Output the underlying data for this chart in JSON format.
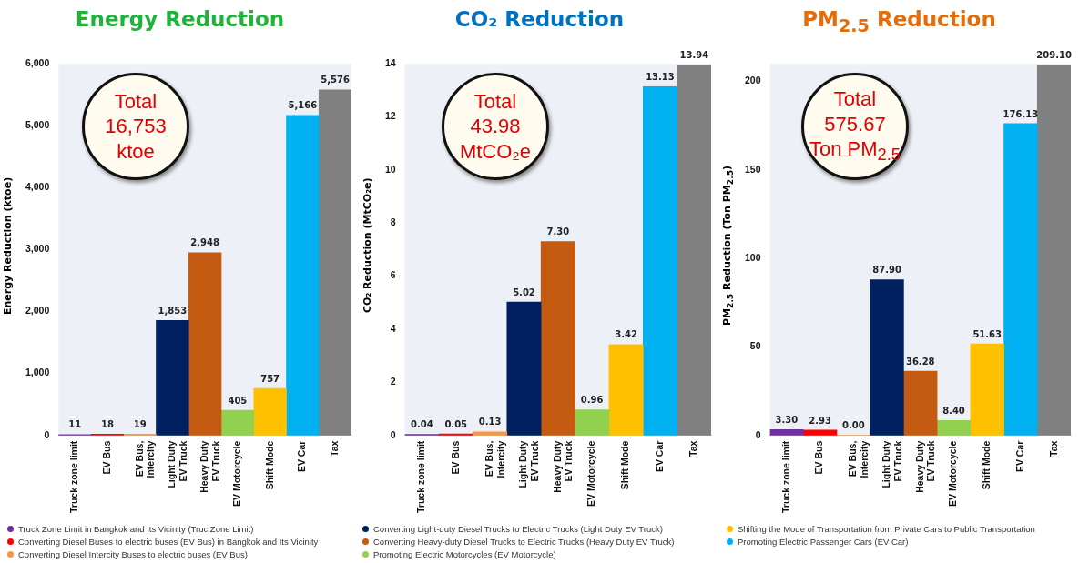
{
  "chart_data": [
    {
      "type": "bar",
      "title": "Energy Reduction",
      "ylabel": "Energy  Reduction (ktoe)",
      "stacked": true,
      "legend": "bottom",
      "categories": [
        "Truck zone limit",
        "EV Bus",
        "EV Bus,\nIntercity",
        "Light Duty\nEV Truck",
        "Heavy Duty\nEV Truck",
        "EV Motorcycle",
        "Shift Mode",
        "EV Car",
        "Tax"
      ],
      "ylim": [
        0,
        6000
      ],
      "yticks": [
        0,
        {
          "value": 1000,
          "label": "1,000"
        },
        {
          "value": 2000,
          "label": "2,000"
        },
        {
          "value": 3000,
          "label": "3,000"
        },
        {
          "value": 4000,
          "label": "4,000"
        },
        {
          "value": 5000,
          "label": "5,000"
        },
        {
          "value": 6000,
          "label": "6,000"
        }
      ],
      "annotations": [
        "Total 16,753 ktoe"
      ],
      "series": [
        {
          "name": "Truck Zone Limit in Bangkok and Its Vicinity (Truc Zone Limit)",
          "color": "#7030a0",
          "values": [
            11,
            null,
            null,
            null,
            null,
            null,
            null,
            null,
            null
          ],
          "value_labels": [
            "11",
            null,
            null,
            null,
            null,
            null,
            null,
            null,
            null
          ]
        },
        {
          "name": "Converting Diesel Buses to electric buses (EV Bus) in Bangkok and Its Vicinity",
          "color": "#ff0000",
          "values": [
            null,
            18,
            null,
            null,
            null,
            null,
            null,
            null,
            null
          ],
          "value_labels": [
            null,
            "18",
            null,
            null,
            null,
            null,
            null,
            null,
            null
          ]
        },
        {
          "name": "Converting Diesel Intercity Buses to electric buses (EV Bus)",
          "color": "#f79646",
          "values": [
            null,
            null,
            19,
            null,
            null,
            null,
            null,
            null,
            null
          ],
          "value_labels": [
            null,
            null,
            "19",
            null,
            null,
            null,
            null,
            null,
            null
          ]
        },
        {
          "name": "Converting Light-duty Diesel Trucks to Electric Trucks (Light Duty EV Truck)",
          "color": "#002060",
          "values": [
            null,
            null,
            null,
            1853,
            null,
            null,
            null,
            null,
            null
          ],
          "value_labels": [
            null,
            null,
            null,
            "1,853",
            null,
            null,
            null,
            null,
            null
          ]
        },
        {
          "name": "Converting Heavy-duty Diesel Trucks to Electric Trucks (Heavy Duty EV Truck)",
          "color": "#c55a11",
          "values": [
            null,
            null,
            null,
            null,
            2948,
            null,
            null,
            null,
            null
          ],
          "value_labels": [
            null,
            null,
            null,
            null,
            "2,948",
            null,
            null,
            null,
            null
          ]
        },
        {
          "name": "Promoting Electric Motorcycles (EV Motorcycle)",
          "color": "#92d050",
          "values": [
            null,
            null,
            null,
            null,
            null,
            405,
            null,
            null,
            null
          ],
          "value_labels": [
            null,
            null,
            null,
            null,
            null,
            "405",
            null,
            null,
            null
          ]
        },
        {
          "name": "Shifting the Mode of Transportation from Private Cars to Public Transportation",
          "color": "#ffc000",
          "values": [
            null,
            null,
            null,
            null,
            null,
            null,
            757,
            null,
            null
          ],
          "value_labels": [
            null,
            null,
            null,
            null,
            null,
            null,
            "757",
            null,
            null
          ]
        },
        {
          "name": "Promoting Electric Passenger Cars (EV Car)",
          "color": "#00b0f0",
          "values": [
            null,
            null,
            null,
            null,
            null,
            null,
            null,
            5166,
            null
          ],
          "value_labels": [
            null,
            null,
            null,
            null,
            null,
            null,
            null,
            "5,166",
            null
          ]
        },
        {
          "color": "#808080",
          "values": [
            null,
            null,
            null,
            null,
            null,
            null,
            null,
            null,
            5576
          ],
          "value_labels": [
            null,
            null,
            null,
            null,
            null,
            null,
            null,
            null,
            "5,576"
          ]
        }
      ]
    },
    {
      "type": "bar",
      "title": "CO₂ Reduction",
      "ylabel": "CO₂ Reduction (MtCO₂e)",
      "stacked": true,
      "categories": [
        "Truck zone limit",
        "EV Bus",
        "EV Bus,\nIntercity",
        "Light Duty\nEV Truck",
        "Heavy Duty\nEV Truck",
        "EV Motorcycle",
        "Shift Mode",
        "EV Car",
        "Tax"
      ],
      "ylim": [
        0,
        14
      ],
      "yticks": [
        0,
        2,
        4,
        6,
        8,
        10,
        12,
        14
      ],
      "annotations": [
        "Total 43.98 MtCO₂e"
      ],
      "series": [
        {
          "color": "#7030a0",
          "values": [
            0.04,
            null,
            null,
            null,
            null,
            null,
            null,
            null,
            null
          ],
          "value_labels": [
            "0.04",
            null,
            null,
            null,
            null,
            null,
            null,
            null,
            null
          ]
        },
        {
          "color": "#ff0000",
          "values": [
            null,
            0.05,
            null,
            null,
            null,
            null,
            null,
            null,
            null
          ],
          "value_labels": [
            null,
            "0.05",
            null,
            null,
            null,
            null,
            null,
            null,
            null
          ]
        },
        {
          "color": "#f79646",
          "values": [
            null,
            null,
            0.13,
            null,
            null,
            null,
            null,
            null,
            null
          ],
          "value_labels": [
            null,
            null,
            "0.13",
            null,
            null,
            null,
            null,
            null,
            null
          ]
        },
        {
          "color": "#002060",
          "values": [
            null,
            null,
            null,
            5.02,
            null,
            null,
            null,
            null,
            null
          ],
          "value_labels": [
            null,
            null,
            null,
            "5.02",
            null,
            null,
            null,
            null,
            null
          ]
        },
        {
          "color": "#c55a11",
          "values": [
            null,
            null,
            null,
            null,
            7.3,
            null,
            null,
            null,
            null
          ],
          "value_labels": [
            null,
            null,
            null,
            null,
            "7.30",
            null,
            null,
            null,
            null
          ]
        },
        {
          "color": "#92d050",
          "values": [
            null,
            null,
            null,
            null,
            null,
            0.96,
            null,
            null,
            null
          ],
          "value_labels": [
            null,
            null,
            null,
            null,
            null,
            "0.96",
            null,
            null,
            null
          ]
        },
        {
          "color": "#ffc000",
          "values": [
            null,
            null,
            null,
            null,
            null,
            null,
            3.42,
            null,
            null
          ],
          "value_labels": [
            null,
            null,
            null,
            null,
            null,
            null,
            "3.42",
            null,
            null
          ]
        },
        {
          "color": "#00b0f0",
          "values": [
            null,
            null,
            null,
            null,
            null,
            null,
            null,
            13.13,
            null
          ],
          "value_labels": [
            null,
            null,
            null,
            null,
            null,
            null,
            null,
            "13.13",
            null
          ]
        },
        {
          "color": "#808080",
          "values": [
            null,
            null,
            null,
            null,
            null,
            null,
            null,
            null,
            13.94
          ],
          "value_labels": [
            null,
            null,
            null,
            null,
            null,
            null,
            null,
            null,
            "13.94"
          ]
        }
      ]
    },
    {
      "type": "bar",
      "title": "PM$_{2.5}$ Reduction",
      "ylabel": "PM$_{2.5}$ Reduction (Ton PM$_{2.5}$)",
      "stacked": true,
      "categories": [
        "Truck zone limit",
        "EV Bus",
        "EV Bus,\nIntercity",
        "Light Duty\nEV Truck",
        "Heavy Duty\nEV Truck",
        "EV Motorcycle",
        "Shift Mode",
        "EV Car",
        "Tax"
      ],
      "ylim": [
        0,
        210
      ],
      "yticks": [
        0,
        50,
        100,
        150,
        200
      ],
      "annotations": [
        "Total 575.67 Ton PM$_{2.5}$"
      ],
      "series": [
        {
          "color": "#7030a0",
          "values": [
            3.3,
            null,
            null,
            null,
            null,
            null,
            null,
            null,
            null
          ],
          "value_labels": [
            "3.30",
            null,
            null,
            null,
            null,
            null,
            null,
            null,
            null
          ]
        },
        {
          "color": "#ff0000",
          "values": [
            null,
            2.93,
            null,
            null,
            null,
            null,
            null,
            null,
            null
          ],
          "value_labels": [
            null,
            "2.93",
            null,
            null,
            null,
            null,
            null,
            null,
            null
          ]
        },
        {
          "color": "#f79646",
          "values": [
            null,
            null,
            0,
            null,
            null,
            null,
            null,
            null,
            null
          ],
          "value_labels": [
            null,
            null,
            "0.00",
            null,
            null,
            null,
            null,
            null,
            null
          ]
        },
        {
          "color": "#002060",
          "values": [
            null,
            null,
            null,
            87.9,
            null,
            null,
            null,
            null,
            null
          ],
          "value_labels": [
            null,
            null,
            null,
            "87.90",
            null,
            null,
            null,
            null,
            null
          ]
        },
        {
          "color": "#c55a11",
          "values": [
            null,
            null,
            null,
            null,
            36.28,
            null,
            null,
            null,
            null
          ],
          "value_labels": [
            null,
            null,
            null,
            null,
            "36.28",
            null,
            null,
            null,
            null
          ]
        },
        {
          "color": "#92d050",
          "values": [
            null,
            null,
            null,
            null,
            null,
            8.4,
            null,
            null,
            null
          ],
          "value_labels": [
            null,
            null,
            null,
            null,
            null,
            "8.40",
            null,
            null,
            null
          ]
        },
        {
          "color": "#ffc000",
          "values": [
            null,
            null,
            null,
            null,
            null,
            null,
            51.63,
            null,
            null
          ],
          "value_labels": [
            null,
            null,
            null,
            null,
            null,
            null,
            "51.63",
            null,
            null
          ]
        },
        {
          "color": "#00b0f0",
          "values": [
            null,
            null,
            null,
            null,
            null,
            null,
            null,
            176.13,
            null
          ],
          "value_labels": [
            null,
            null,
            null,
            null,
            null,
            null,
            null,
            "176.13",
            null
          ]
        },
        {
          "color": "#808080",
          "values": [
            null,
            null,
            null,
            null,
            null,
            null,
            null,
            null,
            209.1
          ],
          "value_labels": [
            null,
            null,
            null,
            null,
            null,
            null,
            null,
            null,
            "209.10"
          ]
        }
      ]
    }
  ]
}
